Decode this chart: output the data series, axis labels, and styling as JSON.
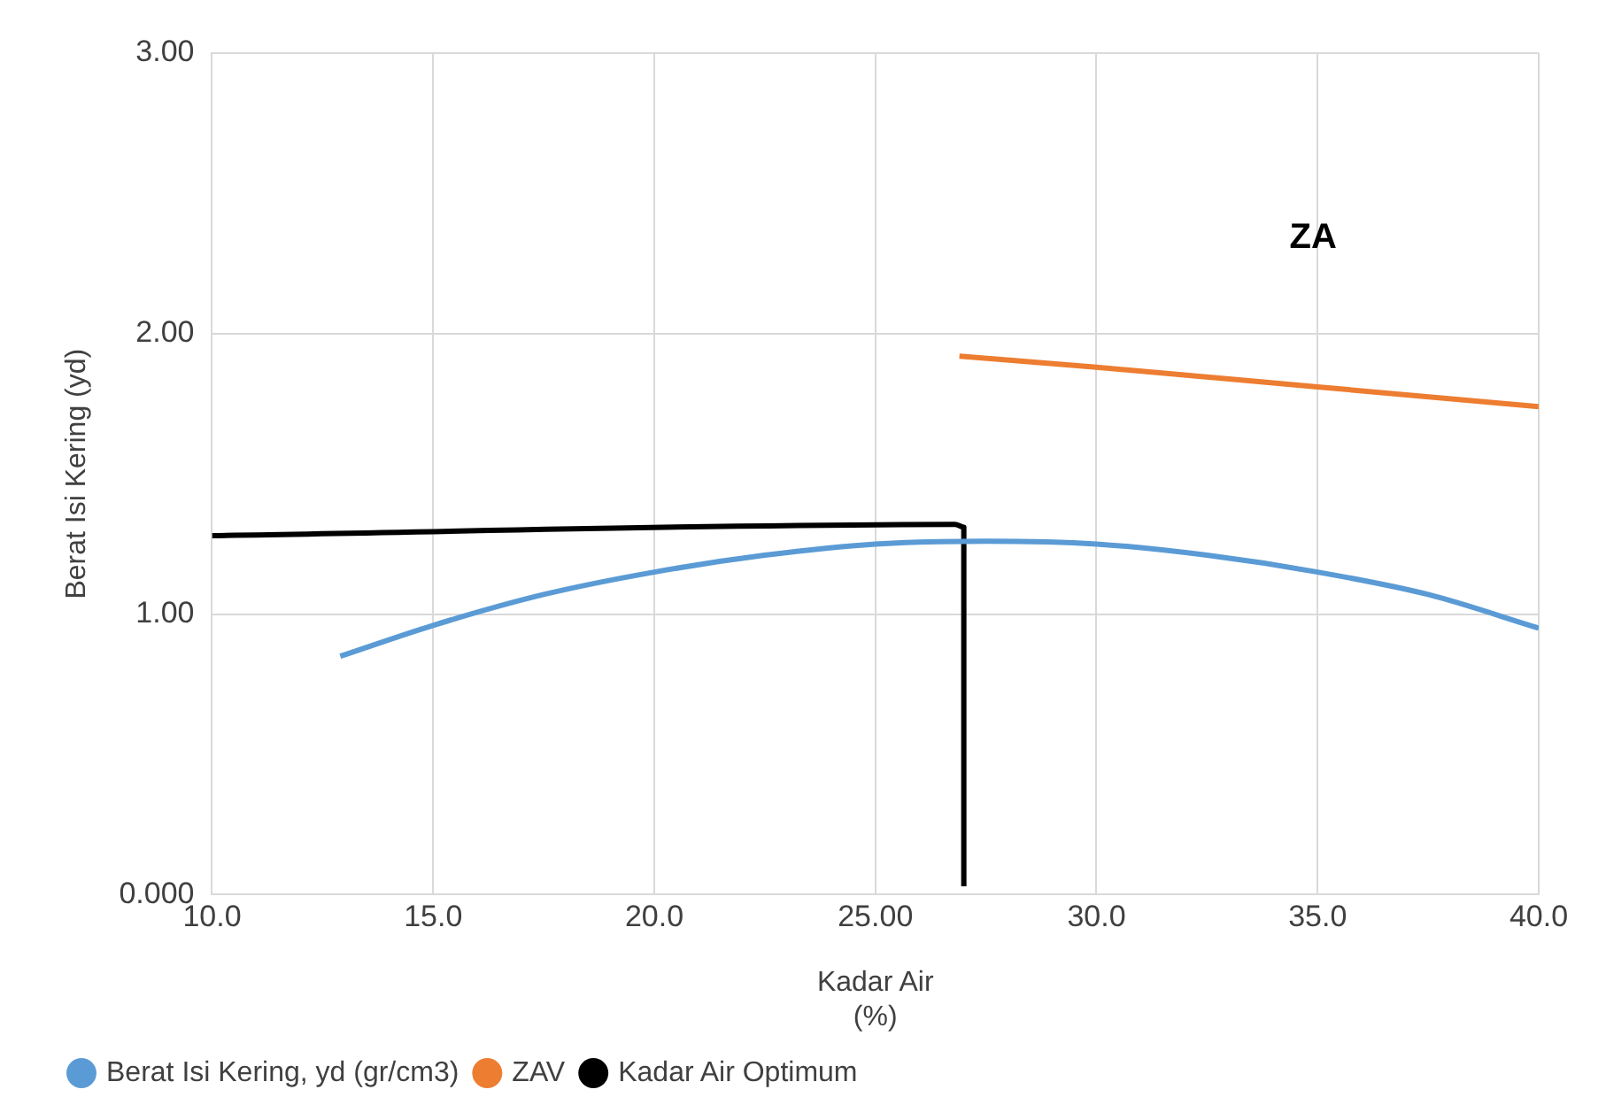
{
  "chart_data": {
    "type": "line",
    "xlabel": "Kadar Air\n(%)",
    "ylabel": "Berat Isi Kering (yd)",
    "series": [
      {
        "name": "Berat Isi Kering, yd (gr/cm3)",
        "color": "#5b9bd5",
        "x": [
          12.9,
          15,
          17.5,
          20,
          22.5,
          25,
          27.5,
          30,
          32.5,
          35,
          37.5,
          40
        ],
        "values": [
          0.85,
          0.96,
          1.07,
          1.15,
          1.21,
          1.25,
          1.26,
          1.25,
          1.21,
          1.15,
          1.07,
          0.95
        ]
      },
      {
        "name": "ZAV",
        "color": "#ed7d31",
        "x": [
          26.9,
          30,
          35,
          40
        ],
        "values": [
          1.92,
          1.88,
          1.81,
          1.74
        ]
      },
      {
        "name": "Kadar Air Optimum",
        "color": "#000000",
        "x": [
          10,
          26.8,
          27,
          27
        ],
        "values": [
          1.28,
          1.32,
          1.31,
          0.03
        ]
      }
    ],
    "xlim": [
      10,
      40
    ],
    "xticks": [
      {
        "value": 10,
        "label": "10.0"
      },
      {
        "value": 15,
        "label": "15.0"
      },
      {
        "value": 20,
        "label": "20.0"
      },
      {
        "value": 25,
        "label": "25.00"
      },
      {
        "value": 30,
        "label": "30.0"
      },
      {
        "value": 35,
        "label": "35.0"
      },
      {
        "value": 40,
        "label": "40.0"
      }
    ],
    "ylim": [
      0,
      3
    ],
    "yticks": [
      {
        "value": 0,
        "label": "0.000"
      },
      {
        "value": 1,
        "label": "1.00"
      },
      {
        "value": 2,
        "label": "2.00"
      },
      {
        "value": 3,
        "label": "3.00"
      }
    ],
    "annotations": [
      "ZA"
    ],
    "grid": true,
    "legend": "bottom left",
    "marker": "none",
    "line_style": "solid"
  }
}
